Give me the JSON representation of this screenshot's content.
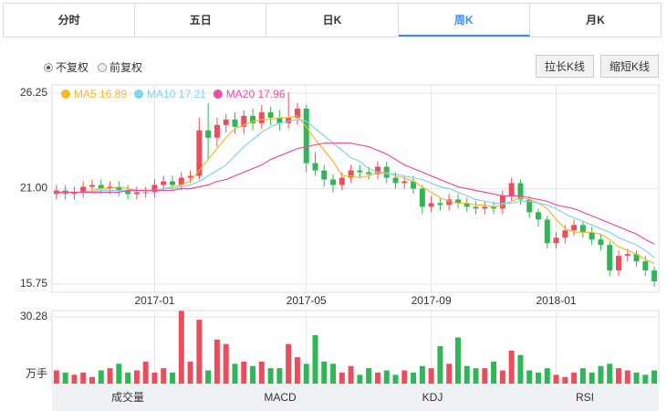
{
  "tabs": [
    "分时",
    "五日",
    "日K",
    "周K",
    "月K"
  ],
  "active_tab": 3,
  "radios": [
    "不复权",
    "前复权"
  ],
  "checked_radio": 0,
  "buttons": [
    "拉长K线",
    "缩短K线"
  ],
  "chart_data": {
    "type": "candlestick",
    "categories": [
      null,
      null,
      null,
      null,
      null,
      null,
      null,
      null,
      null,
      null,
      null,
      "2017-01",
      null,
      null,
      null,
      null,
      null,
      null,
      null,
      null,
      null,
      null,
      null,
      null,
      null,
      null,
      null,
      null,
      "2017-05",
      null,
      null,
      null,
      null,
      null,
      null,
      null,
      null,
      null,
      null,
      null,
      null,
      null,
      "2017-09",
      null,
      null,
      null,
      null,
      null,
      null,
      null,
      null,
      null,
      null,
      null,
      null,
      null,
      "2018-01",
      null,
      null,
      null,
      null,
      null,
      null,
      null,
      null,
      null,
      null,
      null
    ],
    "open": [
      20.7,
      20.9,
      20.7,
      20.8,
      21.1,
      21.2,
      21.0,
      21.1,
      20.9,
      20.7,
      20.8,
      20.8,
      21.2,
      21.4,
      21.2,
      21.6,
      21.7,
      24.2,
      23.8,
      24.5,
      24.8,
      24.4,
      25.0,
      24.6,
      25.2,
      24.9,
      24.6,
      24.9,
      25.4,
      22.4,
      22.0,
      21.5,
      21.2,
      21.6,
      22.0,
      21.9,
      21.8,
      22.2,
      21.6,
      21.3,
      21.4,
      21.0,
      20.0,
      20.2,
      20.1,
      20.4,
      20.2,
      20.0,
      19.9,
      20.0,
      19.9,
      20.6,
      21.3,
      20.4,
      19.7,
      19.3,
      18.0,
      18.3,
      18.7,
      19.0,
      18.6,
      18.2,
      17.9,
      16.5,
      17.3,
      17.4,
      17.0,
      16.5
    ],
    "high": [
      21.2,
      21.2,
      21.1,
      21.4,
      21.5,
      21.5,
      21.4,
      21.4,
      21.2,
      21.1,
      21.1,
      21.5,
      21.7,
      21.7,
      21.9,
      22.0,
      24.9,
      25.7,
      24.9,
      25.1,
      25.2,
      25.3,
      25.4,
      25.6,
      25.5,
      25.3,
      26.3,
      25.7,
      25.6,
      23.0,
      22.3,
      21.8,
      21.9,
      22.3,
      22.3,
      22.2,
      22.5,
      22.5,
      21.9,
      21.7,
      21.7,
      21.2,
      20.6,
      20.5,
      20.7,
      20.7,
      20.5,
      20.3,
      20.3,
      20.3,
      20.9,
      21.6,
      21.5,
      20.6,
      19.9,
      19.5,
      18.6,
      19.0,
      19.3,
      19.2,
      18.9,
      18.5,
      18.1,
      17.6,
      17.7,
      17.6,
      17.3,
      16.7
    ],
    "low": [
      20.4,
      20.4,
      20.4,
      20.5,
      20.8,
      20.7,
      20.7,
      20.6,
      20.4,
      20.4,
      20.5,
      20.5,
      20.9,
      20.9,
      20.9,
      21.3,
      21.5,
      22.6,
      23.3,
      24.1,
      24.0,
      24.0,
      24.2,
      24.3,
      24.5,
      24.2,
      24.3,
      24.5,
      21.9,
      21.7,
      21.1,
      20.8,
      20.9,
      21.3,
      21.6,
      21.5,
      21.5,
      21.3,
      21.0,
      21.0,
      20.7,
      19.6,
      19.7,
      19.8,
      19.8,
      19.9,
      19.7,
      19.6,
      19.6,
      19.6,
      19.6,
      20.3,
      20.1,
      19.4,
      18.9,
      17.7,
      17.7,
      18.0,
      18.4,
      18.3,
      17.9,
      17.6,
      16.2,
      16.2,
      17.0,
      16.7,
      16.2,
      15.6
    ],
    "close": [
      20.9,
      20.7,
      20.8,
      21.1,
      21.2,
      21.0,
      21.1,
      20.9,
      20.7,
      20.8,
      20.8,
      21.2,
      21.4,
      21.2,
      21.6,
      21.7,
      24.2,
      23.8,
      24.5,
      24.8,
      24.4,
      25.0,
      24.6,
      25.2,
      24.9,
      24.6,
      24.9,
      25.4,
      22.4,
      22.0,
      21.5,
      21.2,
      21.6,
      22.0,
      21.9,
      21.8,
      22.2,
      21.6,
      21.3,
      21.4,
      21.0,
      20.0,
      20.2,
      20.1,
      20.4,
      20.2,
      20.0,
      19.9,
      20.0,
      19.9,
      20.6,
      21.3,
      20.4,
      19.7,
      19.3,
      18.0,
      18.3,
      18.7,
      19.0,
      18.6,
      18.2,
      17.9,
      16.5,
      17.3,
      17.4,
      17.0,
      16.5,
      15.9
    ],
    "up_color": "#ec4d5c",
    "down_color": "#2fb757",
    "ylim": [
      15.3,
      26.7
    ],
    "yticks": [
      26.25,
      {
        "value": 21,
        "label": "21.00"
      },
      15.75
    ],
    "grid": true,
    "series": [
      {
        "name": "MA5",
        "color": "#f5b82e",
        "values": [
          20.8,
          20.8,
          20.8,
          20.8,
          20.9,
          21.0,
          21.0,
          21.1,
          21.0,
          20.9,
          20.9,
          20.9,
          21.0,
          21.1,
          21.2,
          21.4,
          22.0,
          22.6,
          23.2,
          23.8,
          24.3,
          24.5,
          24.7,
          24.8,
          24.8,
          24.9,
          24.9,
          25.0,
          24.4,
          23.7,
          23.1,
          22.5,
          21.7,
          21.7,
          21.6,
          21.7,
          21.9,
          21.9,
          21.7,
          21.6,
          21.4,
          21.1,
          20.8,
          20.5,
          20.3,
          20.2,
          20.2,
          20.1,
          20.1,
          20.0,
          20.1,
          20.3,
          20.5,
          20.4,
          20.2,
          19.9,
          19.3,
          18.8,
          18.6,
          18.6,
          18.6,
          18.5,
          18.2,
          17.8,
          17.6,
          17.4,
          17.1,
          16.89
        ]
      },
      {
        "name": "MA10",
        "color": "#7fd3ee",
        "values": [
          20.8,
          20.8,
          20.8,
          20.8,
          20.8,
          20.9,
          20.9,
          20.9,
          20.9,
          20.9,
          20.9,
          20.9,
          21.0,
          21.0,
          21.1,
          21.2,
          21.4,
          21.7,
          22.0,
          22.3,
          22.8,
          23.3,
          23.7,
          24.1,
          24.4,
          24.6,
          24.7,
          24.8,
          24.7,
          24.3,
          23.9,
          23.5,
          23.1,
          22.7,
          22.5,
          22.1,
          21.9,
          21.8,
          21.8,
          21.7,
          21.6,
          21.5,
          21.3,
          21.1,
          21.0,
          20.8,
          20.6,
          20.4,
          20.3,
          20.2,
          20.2,
          20.2,
          20.3,
          20.3,
          20.2,
          20.1,
          19.9,
          19.6,
          19.4,
          19.2,
          19.0,
          18.8,
          18.6,
          18.3,
          18.1,
          17.9,
          17.6,
          17.21
        ]
      },
      {
        "name": "MA20",
        "color": "#e8509e",
        "values": [
          20.8,
          20.8,
          20.8,
          20.8,
          20.8,
          20.8,
          20.8,
          20.8,
          20.9,
          20.9,
          20.9,
          20.9,
          20.9,
          20.9,
          21.0,
          21.0,
          21.1,
          21.2,
          21.4,
          21.5,
          21.7,
          21.9,
          22.1,
          22.3,
          22.6,
          22.8,
          23.0,
          23.2,
          23.3,
          23.4,
          23.5,
          23.5,
          23.5,
          23.5,
          23.4,
          23.3,
          23.1,
          22.9,
          22.6,
          22.3,
          22.1,
          21.9,
          21.7,
          21.5,
          21.3,
          21.1,
          21.0,
          20.9,
          20.8,
          20.7,
          20.6,
          20.6,
          20.6,
          20.5,
          20.4,
          20.3,
          20.1,
          20.0,
          19.9,
          19.7,
          19.5,
          19.3,
          19.1,
          18.9,
          18.7,
          18.5,
          18.2,
          17.96
        ]
      }
    ],
    "volume": {
      "unit": "万手",
      "ylim": [
        0,
        33.2
      ],
      "yticks": [
        30.28
      ],
      "values": [
        6,
        5,
        4,
        5,
        3,
        6,
        7,
        9,
        5,
        6,
        10,
        5,
        7,
        5,
        33,
        10,
        29,
        6,
        20,
        18,
        9,
        10,
        8,
        10,
        7,
        7,
        18,
        12,
        9,
        22,
        10,
        9,
        5,
        8,
        4,
        7,
        5,
        6,
        4,
        6,
        5,
        8,
        7,
        17,
        9,
        21,
        8,
        7,
        7,
        10,
        6,
        15,
        13,
        6,
        5,
        7,
        4,
        3,
        5,
        7,
        5,
        8,
        9,
        7,
        6,
        5,
        4,
        6
      ]
    }
  },
  "indicator_tabs": [
    "成交量",
    "MACD",
    "KDJ",
    "RSI"
  ],
  "active_indicator": 0
}
